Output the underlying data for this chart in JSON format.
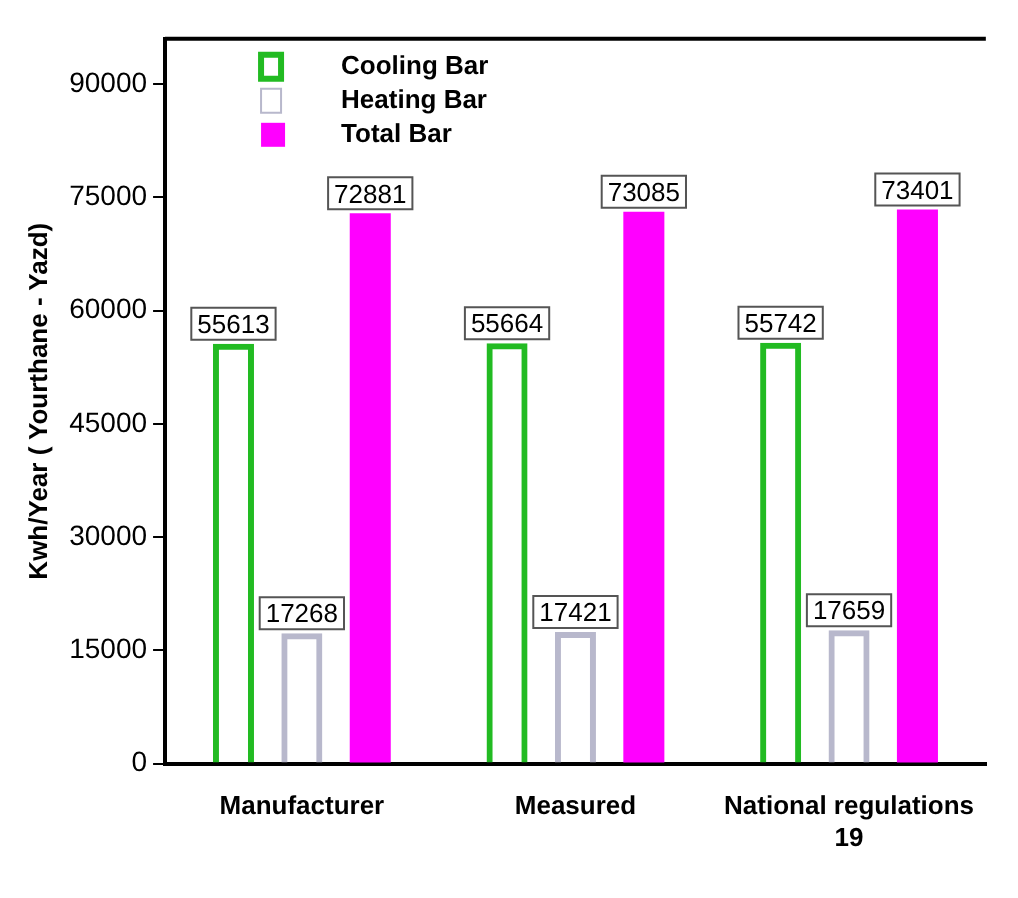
{
  "chart_data": {
    "type": "bar",
    "ylabel": "Kwh/Year ( Yourthane - Yazd)",
    "categories": [
      "Manufacturer",
      "Measured",
      "National regulations\n19"
    ],
    "series": [
      {
        "name": "Cooling Bar",
        "color": "#22bb22",
        "values": [
          55613,
          55664,
          55742
        ]
      },
      {
        "name": "Heating Bar",
        "color": "#b8b8cc",
        "values": [
          17268,
          17421,
          17659
        ]
      },
      {
        "name": "Total Bar",
        "color": "#ff00ff",
        "values": [
          72881,
          73085,
          73401
        ]
      }
    ],
    "ylim": [
      0,
      96000
    ],
    "yticks": [
      0,
      15000,
      30000,
      45000,
      60000,
      75000,
      90000
    ],
    "data_labels": true,
    "legend": "top left",
    "grid": false
  }
}
